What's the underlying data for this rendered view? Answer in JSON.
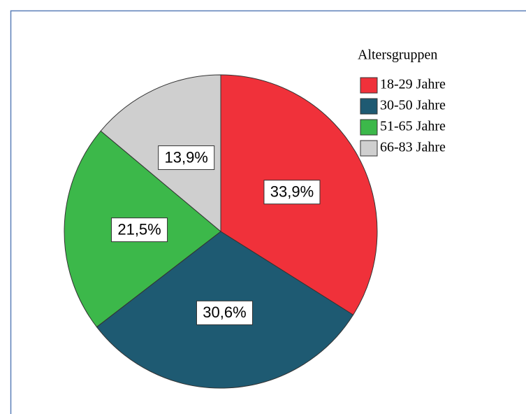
{
  "chart_data": {
    "type": "pie",
    "legend_title": "Altersgruppen",
    "categories": [
      "18-29 Jahre",
      "30-50 Jahre",
      "51-65 Jahre",
      "66-83 Jahre"
    ],
    "values": [
      33.9,
      30.6,
      21.5,
      13.9
    ],
    "value_labels": [
      "33,9%",
      "30,6%",
      "21,5%",
      "13,9%"
    ],
    "colors": [
      "#f0313a",
      "#1e5a72",
      "#3cb84a",
      "#cfcfcf"
    ],
    "legend": "upper right"
  }
}
